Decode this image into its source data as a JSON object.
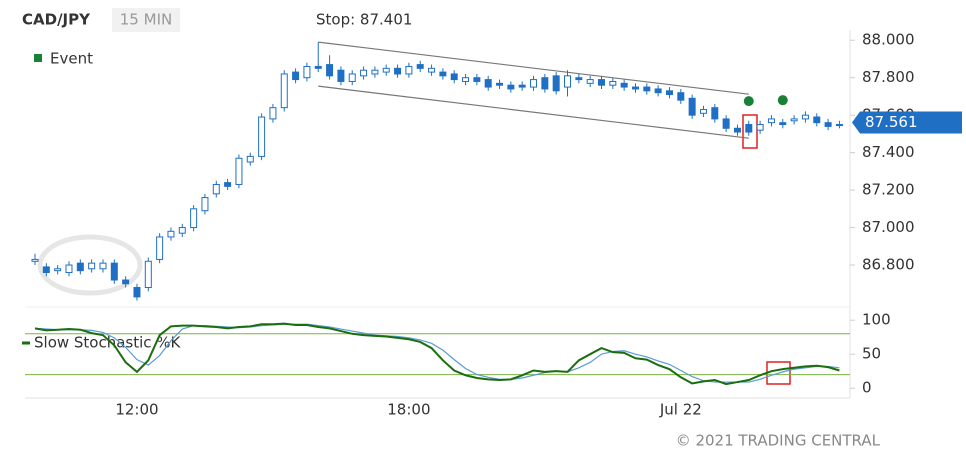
{
  "chart_data": [
    {
      "type": "candlestick",
      "title": "CAD/JPY",
      "subtitle": "15 MIN",
      "annotation": "Stop: 87.401",
      "last_price": 87.561,
      "color_up": "#ffffff",
      "color_down": "#1f6fc5",
      "color": "#1f6fc5",
      "ylim": [
        86.6,
        88.06
      ],
      "yticks": [
        {
          "value": 86.8,
          "label": "86.800"
        },
        {
          "value": 87,
          "label": "87.000"
        },
        {
          "value": 87.2,
          "label": "87.200"
        },
        {
          "value": 87.4,
          "label": "87.400"
        },
        {
          "value": 87.6,
          "label": "87.600"
        },
        {
          "value": 87.8,
          "label": "87.800"
        },
        {
          "value": 88,
          "label": "88.000"
        }
      ],
      "open": [
        86.82,
        86.79,
        86.77,
        86.76,
        86.81,
        86.78,
        86.78,
        86.81,
        86.72,
        86.68,
        86.68,
        86.83,
        86.95,
        86.97,
        87.0,
        87.09,
        87.18,
        87.24,
        87.23,
        87.35,
        87.38,
        87.58,
        87.64,
        87.83,
        87.8,
        87.86,
        87.87,
        87.84,
        87.78,
        87.81,
        87.82,
        87.83,
        87.85,
        87.82,
        87.87,
        87.83,
        87.83,
        87.82,
        87.78,
        87.8,
        87.79,
        87.77,
        87.76,
        87.76,
        87.75,
        87.8,
        87.81,
        87.75,
        87.8,
        87.77,
        87.79,
        87.76,
        87.77,
        87.75,
        87.75,
        87.74,
        87.73,
        87.72,
        87.69,
        87.61,
        87.64,
        87.58,
        87.53,
        87.55,
        87.52,
        87.56,
        87.56,
        87.57,
        87.58,
        87.59,
        87.56,
        87.55
      ],
      "high": [
        86.86,
        86.81,
        86.8,
        86.82,
        86.83,
        86.83,
        86.83,
        86.83,
        86.74,
        86.7,
        86.84,
        86.97,
        87.0,
        87.02,
        87.12,
        87.18,
        87.25,
        87.26,
        87.39,
        87.4,
        87.61,
        87.66,
        87.84,
        87.85,
        87.88,
        87.99,
        87.92,
        87.86,
        87.84,
        87.86,
        87.86,
        87.87,
        87.87,
        87.88,
        87.89,
        87.87,
        87.85,
        87.84,
        87.82,
        87.82,
        87.81,
        87.79,
        87.78,
        87.78,
        87.81,
        87.82,
        87.83,
        87.84,
        87.82,
        87.81,
        87.81,
        87.8,
        87.79,
        87.77,
        87.77,
        87.76,
        87.75,
        87.74,
        87.71,
        87.65,
        87.66,
        87.6,
        87.55,
        87.57,
        87.57,
        87.6,
        87.58,
        87.6,
        87.62,
        87.61,
        87.58,
        87.57
      ],
      "low": [
        86.8,
        86.74,
        86.75,
        86.74,
        86.75,
        86.76,
        86.76,
        86.7,
        86.68,
        86.61,
        86.66,
        86.81,
        86.93,
        86.95,
        86.98,
        87.07,
        87.16,
        87.2,
        87.21,
        87.33,
        87.36,
        87.56,
        87.62,
        87.77,
        87.78,
        87.83,
        87.79,
        87.76,
        87.76,
        87.79,
        87.8,
        87.81,
        87.8,
        87.8,
        87.83,
        87.81,
        87.79,
        87.77,
        87.76,
        87.76,
        87.73,
        87.74,
        87.72,
        87.73,
        87.73,
        87.72,
        87.71,
        87.7,
        87.77,
        87.75,
        87.74,
        87.74,
        87.73,
        87.72,
        87.71,
        87.7,
        87.69,
        87.66,
        87.58,
        87.59,
        87.56,
        87.51,
        87.49,
        87.49,
        87.5,
        87.54,
        87.53,
        87.55,
        87.56,
        87.54,
        87.52,
        87.53
      ],
      "close": [
        86.83,
        86.76,
        86.78,
        86.8,
        86.77,
        86.81,
        86.81,
        86.72,
        86.7,
        86.63,
        86.82,
        86.95,
        86.98,
        87.0,
        87.1,
        87.16,
        87.23,
        87.22,
        87.37,
        87.38,
        87.59,
        87.64,
        87.82,
        87.79,
        87.86,
        87.85,
        87.81,
        87.78,
        87.82,
        87.84,
        87.84,
        87.85,
        87.82,
        87.86,
        87.85,
        87.85,
        87.81,
        87.79,
        87.8,
        87.78,
        87.75,
        87.76,
        87.74,
        87.75,
        87.79,
        87.74,
        87.73,
        87.81,
        87.79,
        87.79,
        87.76,
        87.78,
        87.75,
        87.74,
        87.73,
        87.72,
        87.71,
        87.68,
        87.6,
        87.63,
        87.58,
        87.53,
        87.51,
        87.51,
        87.55,
        87.58,
        87.55,
        87.58,
        87.6,
        87.56,
        87.54,
        87.55
      ],
      "events": {
        "name": "Event",
        "color": "#1a7f37",
        "values": [
          null,
          null,
          null,
          null,
          null,
          null,
          null,
          null,
          null,
          null,
          null,
          null,
          null,
          null,
          null,
          null,
          null,
          null,
          null,
          null,
          null,
          null,
          null,
          null,
          null,
          null,
          null,
          null,
          null,
          null,
          null,
          null,
          null,
          null,
          null,
          null,
          null,
          null,
          null,
          null,
          null,
          null,
          null,
          null,
          null,
          null,
          null,
          null,
          null,
          null,
          null,
          null,
          null,
          null,
          null,
          null,
          null,
          null,
          null,
          null,
          null,
          null,
          null,
          87.675,
          null,
          null,
          87.68,
          null,
          null,
          null,
          null,
          null
        ]
      },
      "channel": {
        "x": [
          25,
          63
        ],
        "upper": [
          87.99,
          87.712
        ],
        "lower": [
          87.755,
          87.477
        ],
        "color": "#777777"
      }
    },
    {
      "type": "line",
      "ylim": [
        -14,
        115
      ],
      "yticks": [
        0,
        50,
        100
      ],
      "bands": [
        20,
        80
      ],
      "band_color": "#7cb342",
      "categories": [
        null,
        null,
        null,
        null,
        null,
        null,
        null,
        null,
        null,
        "12:00",
        null,
        null,
        null,
        null,
        null,
        null,
        null,
        null,
        null,
        null,
        null,
        null,
        null,
        null,
        null,
        null,
        null,
        null,
        null,
        null,
        null,
        null,
        null,
        "18:00",
        null,
        null,
        null,
        null,
        null,
        null,
        null,
        null,
        null,
        null,
        null,
        null,
        null,
        null,
        null,
        null,
        null,
        null,
        null,
        null,
        null,
        null,
        null,
        "Jul 22",
        null,
        null,
        null,
        null,
        null,
        null,
        null,
        null,
        null,
        null,
        null,
        null,
        null,
        null
      ],
      "series": [
        {
          "name": "Slow Stochastic %K",
          "color": "#1b6e0f",
          "values": [
            88,
            85,
            86,
            87,
            86,
            81,
            78,
            63,
            38,
            24,
            41,
            78,
            91,
            92,
            92,
            91,
            90,
            88,
            90,
            91,
            94,
            94,
            95,
            93,
            93,
            90,
            88,
            84,
            80,
            78,
            77,
            76,
            74,
            72,
            68,
            59,
            41,
            26,
            19,
            15,
            13,
            12,
            13,
            19,
            26,
            24,
            25,
            24,
            41,
            50,
            59,
            53,
            52,
            44,
            42,
            34,
            28,
            16,
            7,
            10,
            12,
            6,
            9,
            12,
            19,
            25,
            28,
            30,
            32,
            33,
            31,
            26
          ]
        },
        {
          "color": "#5b9bd5",
          "values": [
            88,
            87,
            86,
            86,
            86,
            85,
            82,
            74,
            60,
            42,
            34,
            48,
            70,
            87,
            92,
            92,
            91,
            90,
            89,
            90,
            92,
            93,
            94,
            94,
            94,
            92,
            90,
            87,
            84,
            81,
            78,
            77,
            76,
            74,
            71,
            66,
            56,
            42,
            29,
            20,
            16,
            13,
            13,
            15,
            19,
            23,
            25,
            24,
            30,
            38,
            50,
            54,
            55,
            50,
            46,
            40,
            35,
            26,
            17,
            11,
            9,
            9,
            9,
            9,
            13,
            19,
            24,
            28,
            30,
            32,
            32,
            30
          ]
        }
      ],
      "footer": "© 2021 TRADING CENTRAL"
    }
  ]
}
